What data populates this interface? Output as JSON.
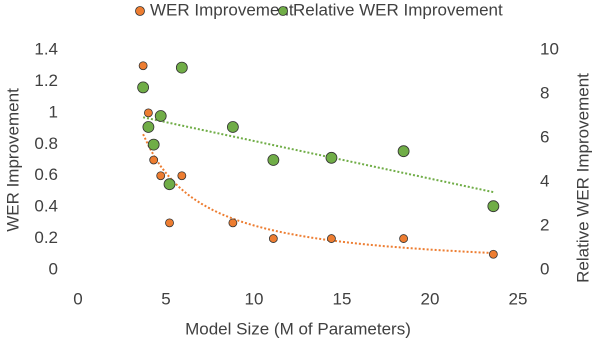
{
  "chart_data": {
    "type": "scatter",
    "x_label": "Model Size (M of Parameters)",
    "y_label": "WER Improvement",
    "y2_label": "Relative WER Improvement",
    "x": [
      3.7,
      4.0,
      4.3,
      4.7,
      5.2,
      5.9,
      8.8,
      11.1,
      14.4,
      18.5,
      23.6
    ],
    "series": [
      {
        "name": "WER Improvement",
        "color": "#ED7D31",
        "trendline": "power",
        "values": [
          1.3,
          1.0,
          0.7,
          0.6,
          0.3,
          0.6,
          0.3,
          0.2,
          0.2,
          0.2,
          0.1
        ]
      },
      {
        "name": "Relative WER Improvement",
        "color": "#70AD47",
        "axis": "y2",
        "trendline": "linear",
        "values": [
          8.3,
          6.5,
          5.7,
          7.0,
          3.9,
          9.2,
          6.5,
          5.0,
          5.1,
          5.4,
          2.9
        ]
      }
    ],
    "xlim": [
      0,
      25
    ],
    "xticks": [
      0,
      5,
      10,
      15,
      20,
      25
    ],
    "ylim": [
      0,
      1.4
    ],
    "yticks": [
      0,
      0.2,
      0.4,
      0.6,
      0.8,
      1,
      1.2,
      1.4
    ],
    "y2lim": [
      0,
      10
    ],
    "y2ticks": [
      0,
      2,
      4,
      6,
      8,
      10
    ],
    "legend": "top"
  }
}
